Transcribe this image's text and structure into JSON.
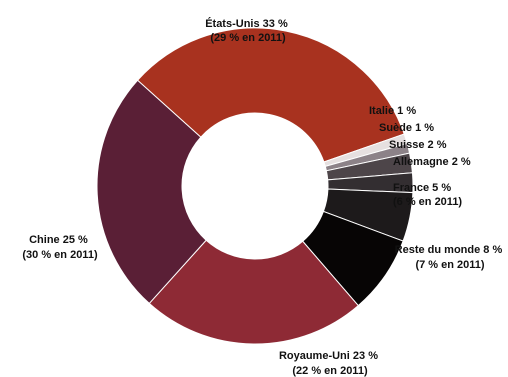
{
  "chart_data": {
    "type": "pie",
    "donut": true,
    "title": "",
    "slices": [
      {
        "label": "États-Unis",
        "value": 33,
        "value_label": "33 %",
        "note": "(29 % en 2011)",
        "color": "#a8321f"
      },
      {
        "label": "Italie",
        "value": 1,
        "value_label": "1 %",
        "note": "",
        "color": "#e6e0e0"
      },
      {
        "label": "Suède",
        "value": 1,
        "value_label": "1 %",
        "note": "",
        "color": "#8c8288"
      },
      {
        "label": "Suisse",
        "value": 2,
        "value_label": "2 %",
        "note": "",
        "color": "#4d4549"
      },
      {
        "label": "Allemagne",
        "value": 2,
        "value_label": "2 %",
        "note": "",
        "color": "#332e31"
      },
      {
        "label": "France",
        "value": 5,
        "value_label": "5 %",
        "note": "(6 % en 2011)",
        "color": "#1d1a1b"
      },
      {
        "label": "Reste du monde",
        "value": 8,
        "value_label": "8 %",
        "note": "(7 % en 2011)",
        "color": "#070505"
      },
      {
        "label": "Royaume-Uni",
        "value": 23,
        "value_label": "23 %",
        "note": "(22 % en 2011)",
        "color": "#8e2a35"
      },
      {
        "label": "Chine",
        "value": 25,
        "value_label": "25 %",
        "note": "(30 % en 2011)",
        "color": "#5a1f36"
      }
    ]
  }
}
